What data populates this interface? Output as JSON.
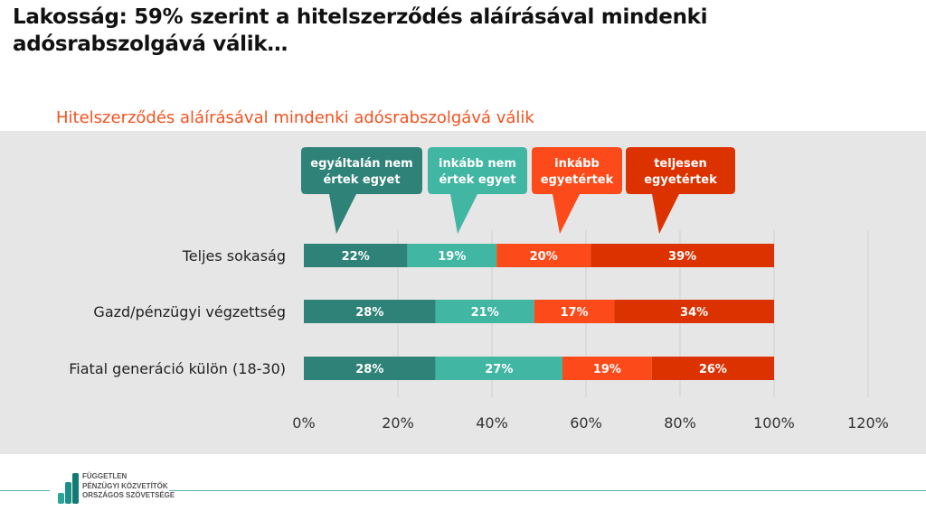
{
  "title": "Lakosság: 59% szerint a hitelszerződés aláírásával mindenki adósrabszolgává válik…",
  "chart_data": {
    "type": "bar",
    "stacked": true,
    "orientation": "horizontal",
    "title": "Hitelszerződés aláírásával mindenki adósrabszolgává válik",
    "categories": [
      "Teljes sokaság",
      "Gazd/pénzügyi végzettség",
      "Fiatal generáció külön (18-30)"
    ],
    "series": [
      {
        "name": "egyáltalán nem értek egyet",
        "lines": [
          "egyáltalán nem",
          "értek egyet"
        ],
        "color": "#2e8277",
        "values": [
          22,
          28,
          28
        ]
      },
      {
        "name": "inkább nem értek egyet",
        "lines": [
          "inkább nem",
          "értek egyet"
        ],
        "color": "#40b6a3",
        "values": [
          19,
          21,
          27
        ]
      },
      {
        "name": "inkább egyetértek",
        "lines": [
          "inkább",
          "egyetértek"
        ],
        "color": "#fc4a1a",
        "values": [
          20,
          17,
          19
        ]
      },
      {
        "name": "teljesen egyetértek",
        "lines": [
          "teljesen",
          "egyetértek"
        ],
        "color": "#dc3200",
        "values": [
          39,
          34,
          26
        ]
      }
    ],
    "xlim": [
      0,
      120
    ],
    "xticks": [
      "0%",
      "20%",
      "40%",
      "60%",
      "80%",
      "100%",
      "120%"
    ],
    "grid": true,
    "legend": "top (callouts)"
  },
  "footer": {
    "logo_lines": [
      "FÜGGETLEN",
      "PÉNZÜGYI KÖZVETÍTŐK",
      "ORSZÁGOS SZÖVETSÉGE"
    ]
  }
}
